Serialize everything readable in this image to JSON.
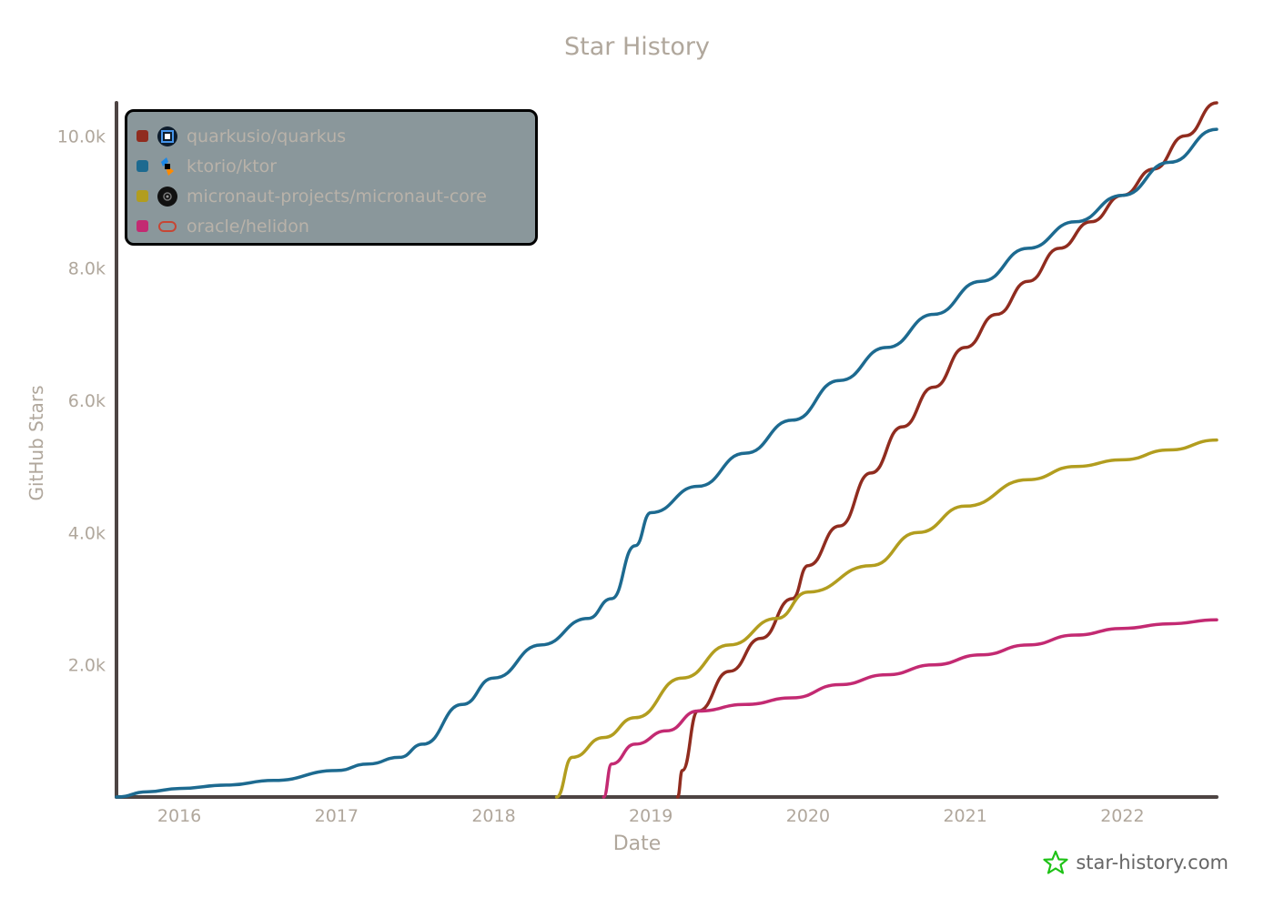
{
  "chart_data": {
    "type": "line",
    "title": "Star History",
    "xlabel": "Date",
    "ylabel": "GitHub Stars",
    "xlim": [
      2015.6,
      2022.6
    ],
    "ylim": [
      0,
      10500
    ],
    "x_ticks": [
      {
        "value": 2016,
        "label": "2016"
      },
      {
        "value": 2017,
        "label": "2017"
      },
      {
        "value": 2018,
        "label": "2018"
      },
      {
        "value": 2019,
        "label": "2019"
      },
      {
        "value": 2020,
        "label": "2020"
      },
      {
        "value": 2021,
        "label": "2021"
      },
      {
        "value": 2022,
        "label": "2022"
      }
    ],
    "y_ticks": [
      {
        "value": 2000,
        "label": "2.0k"
      },
      {
        "value": 4000,
        "label": "4.0k"
      },
      {
        "value": 6000,
        "label": "6.0k"
      },
      {
        "value": 8000,
        "label": "8.0k"
      },
      {
        "value": 10000,
        "label": "10.0k"
      }
    ],
    "grid": false,
    "legend_position": "top-left",
    "series": [
      {
        "name": "quarkusio/quarkus",
        "color": "#902c1f",
        "logo": "quarkus-logo-icon",
        "x": [
          2019.17,
          2019.2,
          2019.3,
          2019.5,
          2019.7,
          2019.9,
          2020.0,
          2020.2,
          2020.4,
          2020.6,
          2020.8,
          2021.0,
          2021.2,
          2021.4,
          2021.6,
          2021.8,
          2022.0,
          2022.2,
          2022.4,
          2022.6
        ],
        "y": [
          0,
          400,
          1300,
          1900,
          2400,
          3000,
          3500,
          4100,
          4900,
          5600,
          6200,
          6800,
          7300,
          7800,
          8300,
          8700,
          9100,
          9500,
          10000,
          10500
        ]
      },
      {
        "name": "ktorio/ktor",
        "color": "#1d6a90",
        "logo": "ktor-logo-icon",
        "x": [
          2015.6,
          2015.8,
          2016.0,
          2016.3,
          2016.6,
          2017.0,
          2017.2,
          2017.4,
          2017.55,
          2017.8,
          2018.0,
          2018.3,
          2018.6,
          2018.75,
          2018.9,
          2019.0,
          2019.3,
          2019.6,
          2019.9,
          2020.2,
          2020.5,
          2020.8,
          2021.1,
          2021.4,
          2021.7,
          2022.0,
          2022.3,
          2022.6
        ],
        "y": [
          0,
          80,
          130,
          180,
          250,
          400,
          500,
          600,
          800,
          1400,
          1800,
          2300,
          2700,
          3000,
          3800,
          4300,
          4700,
          5200,
          5700,
          6300,
          6800,
          7300,
          7800,
          8300,
          8700,
          9100,
          9600,
          10100
        ]
      },
      {
        "name": "micronaut-projects/micronaut-core",
        "color": "#b29d1f",
        "logo": "micronaut-logo-icon",
        "x": [
          2018.4,
          2018.5,
          2018.7,
          2018.9,
          2019.2,
          2019.5,
          2019.8,
          2020.0,
          2020.4,
          2020.7,
          2021.0,
          2021.4,
          2021.7,
          2022.0,
          2022.3,
          2022.6
        ],
        "y": [
          0,
          600,
          900,
          1200,
          1800,
          2300,
          2700,
          3100,
          3500,
          4000,
          4400,
          4800,
          5000,
          5100,
          5250,
          5400
        ]
      },
      {
        "name": "oracle/helidon",
        "color": "#c32a72",
        "logo": "helidon-logo-icon",
        "x": [
          2018.7,
          2018.75,
          2018.9,
          2019.1,
          2019.3,
          2019.6,
          2019.9,
          2020.2,
          2020.5,
          2020.8,
          2021.1,
          2021.4,
          2021.7,
          2022.0,
          2022.3,
          2022.6
        ],
        "y": [
          0,
          500,
          800,
          1000,
          1300,
          1400,
          1500,
          1700,
          1850,
          2000,
          2150,
          2300,
          2450,
          2550,
          2620,
          2680
        ]
      }
    ]
  },
  "watermark": {
    "text": "star-history.com",
    "icon": "star-history-logo-icon",
    "icon_color": "#1ec216"
  }
}
